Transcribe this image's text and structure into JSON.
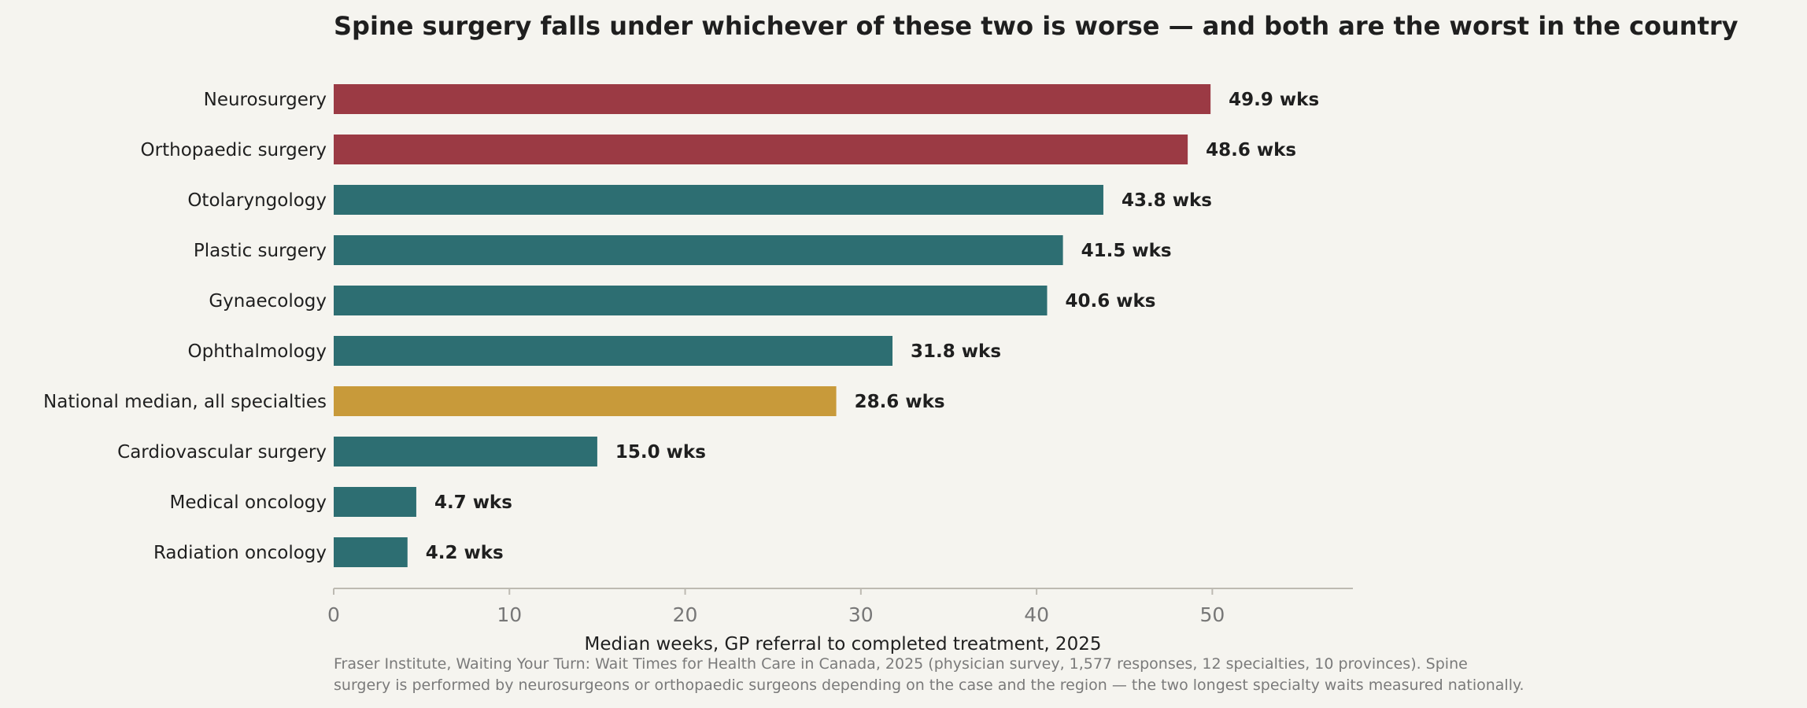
{
  "chart_data": {
    "type": "bar",
    "orientation": "horizontal",
    "title": "Spine surgery falls under whichever of these two is worse — and both are the worst in the country",
    "xlabel": "Median weeks, GP referral to completed treatment, 2025",
    "ylabel": "",
    "xlim": [
      0,
      58
    ],
    "xticks": [
      0,
      10,
      20,
      30,
      40,
      50
    ],
    "grid": false,
    "value_suffix": " wks",
    "categories": [
      "Neurosurgery",
      "Orthopaedic surgery",
      "Otolaryngology",
      "Plastic surgery",
      "Gynaecology",
      "Ophthalmology",
      "National median, all specialties",
      "Cardiovascular surgery",
      "Medical oncology",
      "Radiation oncology"
    ],
    "values": [
      49.9,
      48.6,
      43.8,
      41.5,
      40.6,
      31.8,
      28.6,
      15.0,
      4.7,
      4.2
    ],
    "value_labels": [
      "49.9 wks",
      "48.6 wks",
      "43.8 wks",
      "41.5 wks",
      "40.6 wks",
      "31.8 wks",
      "28.6 wks",
      "15.0 wks",
      "4.7 wks",
      "4.2 wks"
    ],
    "bar_groups": [
      "highlight",
      "highlight",
      "default",
      "default",
      "default",
      "default",
      "median",
      "default",
      "default",
      "default"
    ],
    "colors": {
      "highlight": "#9b3a44",
      "default": "#2d6e72",
      "median": "#c89a3a",
      "background": "#f5f4ef",
      "axis": "#bdbab2",
      "tick_label": "#777777",
      "text": "#1f1f1f",
      "source": "#7a7a7a"
    },
    "source_lines": [
      "Fraser Institute, Waiting Your Turn: Wait Times for Health Care in Canada, 2025 (physician survey, 1,577 responses, 12 specialties, 10 provinces). Spine",
      "surgery is performed by neurosurgeons or orthopaedic surgeons depending on the case and the region — the two longest specialty waits measured nationally."
    ]
  }
}
